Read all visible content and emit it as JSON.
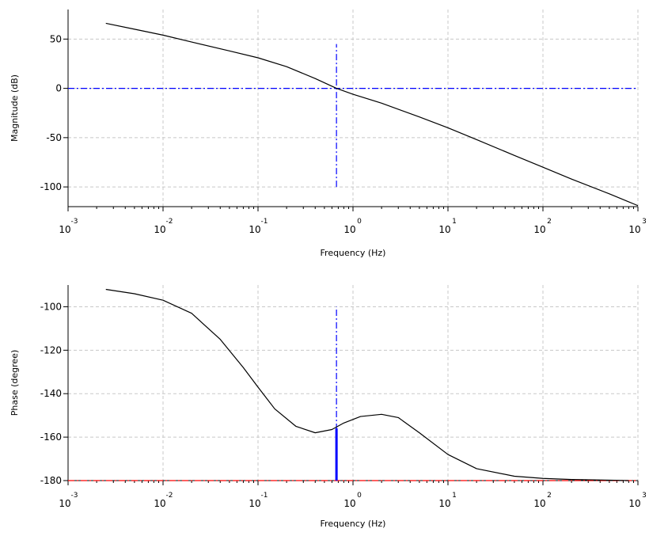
{
  "chart_data": [
    {
      "type": "line",
      "scale_x": "log",
      "xlabel": "Frequency (Hz)",
      "ylabel": "Magnitude (dB)",
      "xlim": [
        0.001,
        1000
      ],
      "ylim": [
        -120,
        80
      ],
      "x_ticks": [
        {
          "base": "10",
          "exp": "-3"
        },
        {
          "base": "10",
          "exp": "-2"
        },
        {
          "base": "10",
          "exp": "-1"
        },
        {
          "base": "10",
          "exp": "0"
        },
        {
          "base": "10",
          "exp": "1"
        },
        {
          "base": "10",
          "exp": "2"
        },
        {
          "base": "10",
          "exp": "3"
        }
      ],
      "y_ticks": [
        "50",
        "0",
        "-50",
        "-100"
      ],
      "y_tick_values": [
        50,
        0,
        -50,
        -100
      ],
      "grid": true,
      "series": [
        {
          "color": "#000000",
          "x": [
            0.0025,
            0.005,
            0.01,
            0.02,
            0.05,
            0.1,
            0.2,
            0.4,
            0.67,
            1,
            2,
            5,
            10,
            20,
            50,
            100,
            200,
            500,
            1000
          ],
          "y": [
            66,
            60,
            54,
            47,
            38,
            31,
            22,
            10,
            0,
            -6,
            -15,
            -29,
            -40,
            -52,
            -68,
            -80,
            -92,
            -107,
            -119
          ]
        }
      ],
      "reference_lines": [
        {
          "kind": "horizontal",
          "y": 0,
          "color": "#0000ff",
          "style": "dash-dot"
        },
        {
          "kind": "vertical",
          "x": 0.67,
          "y_range": [
            -100,
            45
          ],
          "color": "#0000ff",
          "style": "dash-dot"
        }
      ]
    },
    {
      "type": "line",
      "scale_x": "log",
      "xlabel": "Frequency (Hz)",
      "ylabel": "Phase (degree)",
      "xlim": [
        0.001,
        1000
      ],
      "ylim": [
        -180,
        -90
      ],
      "x_ticks": [
        {
          "base": "10",
          "exp": "-3"
        },
        {
          "base": "10",
          "exp": "-2"
        },
        {
          "base": "10",
          "exp": "-1"
        },
        {
          "base": "10",
          "exp": "0"
        },
        {
          "base": "10",
          "exp": "1"
        },
        {
          "base": "10",
          "exp": "2"
        },
        {
          "base": "10",
          "exp": "3"
        }
      ],
      "y_ticks": [
        "-100",
        "-120",
        "-140",
        "-160",
        "-180"
      ],
      "y_tick_values": [
        -100,
        -120,
        -140,
        -160,
        -180
      ],
      "grid": true,
      "series": [
        {
          "color": "#000000",
          "x": [
            0.0025,
            0.005,
            0.01,
            0.02,
            0.04,
            0.07,
            0.1,
            0.15,
            0.25,
            0.4,
            0.6,
            0.8,
            1.2,
            2,
            3,
            5,
            10,
            20,
            50,
            100,
            200,
            500,
            800
          ],
          "y": [
            -92,
            -94,
            -97,
            -103,
            -115,
            -128,
            -137,
            -147,
            -155,
            -158,
            -156.5,
            -153.5,
            -150.5,
            -149.5,
            -151,
            -158,
            -168,
            -174.5,
            -178,
            -179,
            -179.5,
            -179.8,
            -180
          ]
        }
      ],
      "reference_lines": [
        {
          "kind": "horizontal",
          "y": -180,
          "color": "#ff0000",
          "style": "dash-dot"
        },
        {
          "kind": "vertical",
          "x": 0.67,
          "y_range": [
            -180,
            -100
          ],
          "color": "#0000ff",
          "style": "dash-dot"
        },
        {
          "kind": "margin-bar",
          "x": 0.67,
          "y_range": [
            -180,
            -156
          ],
          "color": "#0000ff",
          "style": "solid"
        }
      ]
    }
  ]
}
